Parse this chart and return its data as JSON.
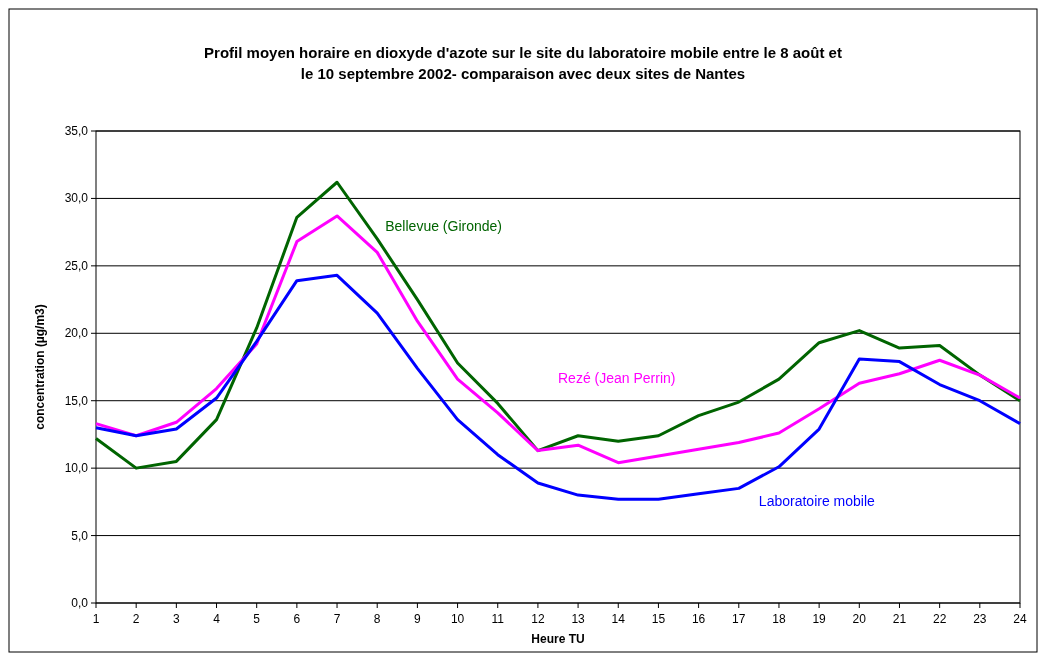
{
  "chart_data": {
    "type": "line",
    "title": "Profil moyen horaire en dioxyde d'azote sur le site du laboratoire mobile entre le 8 août et le 10 septembre 2002- comparaison avec deux sites de Nantes",
    "xlabel": "Heure TU",
    "ylabel": "concentration  (µg/m3)",
    "x": [
      1,
      2,
      3,
      4,
      5,
      6,
      7,
      8,
      9,
      10,
      11,
      12,
      13,
      14,
      15,
      16,
      17,
      18,
      19,
      20,
      21,
      22,
      23,
      24
    ],
    "xlim": [
      1,
      24
    ],
    "xticks": [
      1,
      2,
      3,
      4,
      5,
      6,
      7,
      8,
      9,
      10,
      11,
      12,
      13,
      14,
      15,
      16,
      17,
      18,
      19,
      20,
      21,
      22,
      23,
      24
    ],
    "ylim": [
      0,
      35
    ],
    "yticks": [
      {
        "value": 0,
        "label": "0,0"
      },
      {
        "value": 5,
        "label": "5,0"
      },
      {
        "value": 10,
        "label": "10,0"
      },
      {
        "value": 15,
        "label": "15,0"
      },
      {
        "value": 20,
        "label": "20,0"
      },
      {
        "value": 25,
        "label": "25,0"
      },
      {
        "value": 30,
        "label": "30,0"
      },
      {
        "value": 35,
        "label": "35,0"
      }
    ],
    "grid": "y",
    "legend": false,
    "marker": "none",
    "line_style": "solid",
    "series": [
      {
        "name": "Bellevue (Gironde)",
        "color": "#006400",
        "values": [
          12.2,
          10.0,
          10.5,
          13.6,
          20.4,
          28.6,
          31.2,
          27.0,
          22.5,
          17.8,
          14.8,
          11.3,
          12.4,
          12.0,
          12.4,
          13.9,
          14.9,
          16.6,
          19.3,
          20.2,
          18.9,
          19.1,
          16.9,
          15.0
        ]
      },
      {
        "name": "Rezé (Jean Perrin)",
        "color": "#ff00ff",
        "values": [
          13.3,
          12.4,
          13.4,
          15.9,
          19.2,
          26.8,
          28.7,
          26.0,
          20.9,
          16.6,
          14.1,
          11.3,
          11.7,
          10.4,
          10.9,
          11.4,
          11.9,
          12.6,
          14.4,
          16.3,
          17.0,
          18.0,
          16.9,
          15.2
        ]
      },
      {
        "name": "Laboratoire mobile",
        "color": "#0000ff",
        "values": [
          13.0,
          12.4,
          12.9,
          15.2,
          19.4,
          23.9,
          24.3,
          21.5,
          17.4,
          13.6,
          11.0,
          8.9,
          8.0,
          7.7,
          7.7,
          8.1,
          8.5,
          10.1,
          12.9,
          18.1,
          17.9,
          16.2,
          15.0,
          13.3
        ]
      }
    ]
  }
}
